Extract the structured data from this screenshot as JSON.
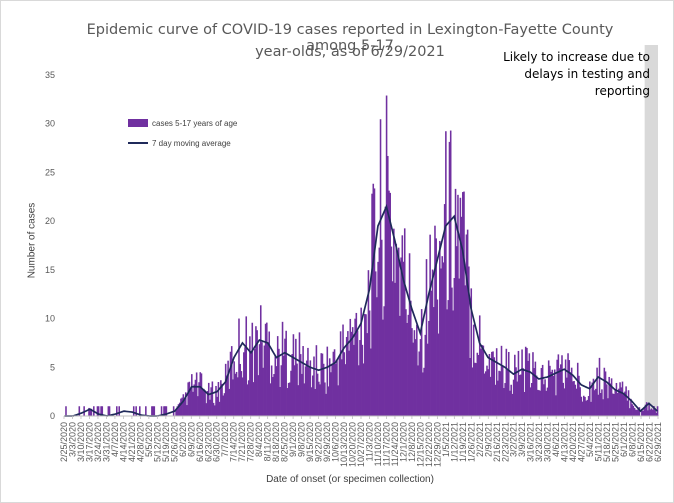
{
  "chart_data": {
    "type": "bar",
    "title_line1": "Epidemic curve of COVID-19 cases reported in Lexington-Fayette County among 5-17",
    "title_line2": "year-olds, as of 6/29/2021",
    "xlabel": "Date of onset (or specimen collection)",
    "ylabel": "Number of cases",
    "ylim": [
      0,
      35
    ],
    "yticks": [
      0,
      5,
      10,
      15,
      20,
      25,
      30,
      35
    ],
    "annotation": "Likely to increase due to delays in testing and reporting",
    "shaded_region": {
      "from": "6/18/2021",
      "to": "6/29/2021",
      "color": "#d9d9d9"
    },
    "legend_placement": "upper-left",
    "x_start": "2/25/2020",
    "x_end": "6/29/2021",
    "x_tick_labels": [
      "2/25/2020",
      "3/3/2020",
      "3/10/2020",
      "3/17/2020",
      "3/24/2020",
      "3/31/2020",
      "4/7/2020",
      "4/14/2020",
      "4/21/2020",
      "4/28/2020",
      "5/5/2020",
      "5/12/2020",
      "5/19/2020",
      "5/26/2020",
      "6/2/2020",
      "6/9/2020",
      "6/16/2020",
      "6/23/2020",
      "6/30/2020",
      "7/7/2020",
      "7/14/2020",
      "7/21/2020",
      "7/28/2020",
      "8/4/2020",
      "8/11/2020",
      "8/18/2020",
      "8/25/2020",
      "9/1/2020",
      "9/8/2020",
      "9/15/2020",
      "9/22/2020",
      "9/29/2020",
      "10/6/2020",
      "10/13/2020",
      "10/20/2020",
      "10/27/2020",
      "11/3/2020",
      "11/10/2020",
      "11/17/2020",
      "11/24/2020",
      "12/1/2020",
      "12/8/2020",
      "12/15/2020",
      "12/22/2020",
      "12/29/2020",
      "1/5/2021",
      "1/12/2021",
      "1/19/2021",
      "1/26/2021",
      "2/2/2021",
      "2/9/2021",
      "2/16/2021",
      "2/23/2021",
      "3/2/2021",
      "3/9/2021",
      "3/16/2021",
      "3/23/2021",
      "3/30/2021",
      "4/6/2021",
      "4/13/2021",
      "4/20/2021",
      "4/27/2021",
      "5/4/2021",
      "5/11/2021",
      "5/18/2021",
      "5/25/2021",
      "6/1/2021",
      "6/8/2021",
      "6/15/2021",
      "6/22/2021",
      "6/29/2021"
    ],
    "series": [
      {
        "name": "cases 5-17 years of age",
        "kind": "bar",
        "color": "#7030a0"
      },
      {
        "name": "7 day moving average",
        "kind": "line",
        "color": "#1f2a5a"
      }
    ],
    "weekly_smoothed_cases": [
      0,
      0,
      0.3,
      0.7,
      0.2,
      0,
      0.2,
      0.5,
      0.4,
      0.1,
      0,
      0,
      0.2,
      0.5,
      1.5,
      3,
      3,
      2.2,
      2.5,
      3.5,
      6,
      7.5,
      6.5,
      7.8,
      7.5,
      6,
      6.5,
      6,
      5.5,
      5,
      4.7,
      5,
      5.5,
      7,
      8,
      9.5,
      13,
      19.5,
      21.5,
      18,
      14,
      11,
      8.5,
      12.5,
      16,
      19.5,
      20.5,
      17,
      11,
      7.5,
      6,
      5.5,
      5,
      4.3,
      4.8,
      4.5,
      3.8,
      4,
      4.4,
      4.8,
      4.2,
      3.2,
      2.8,
      4,
      3.5,
      2.7,
      2.3,
      1.5,
      0.5,
      1.3,
      0.5
    ]
  }
}
